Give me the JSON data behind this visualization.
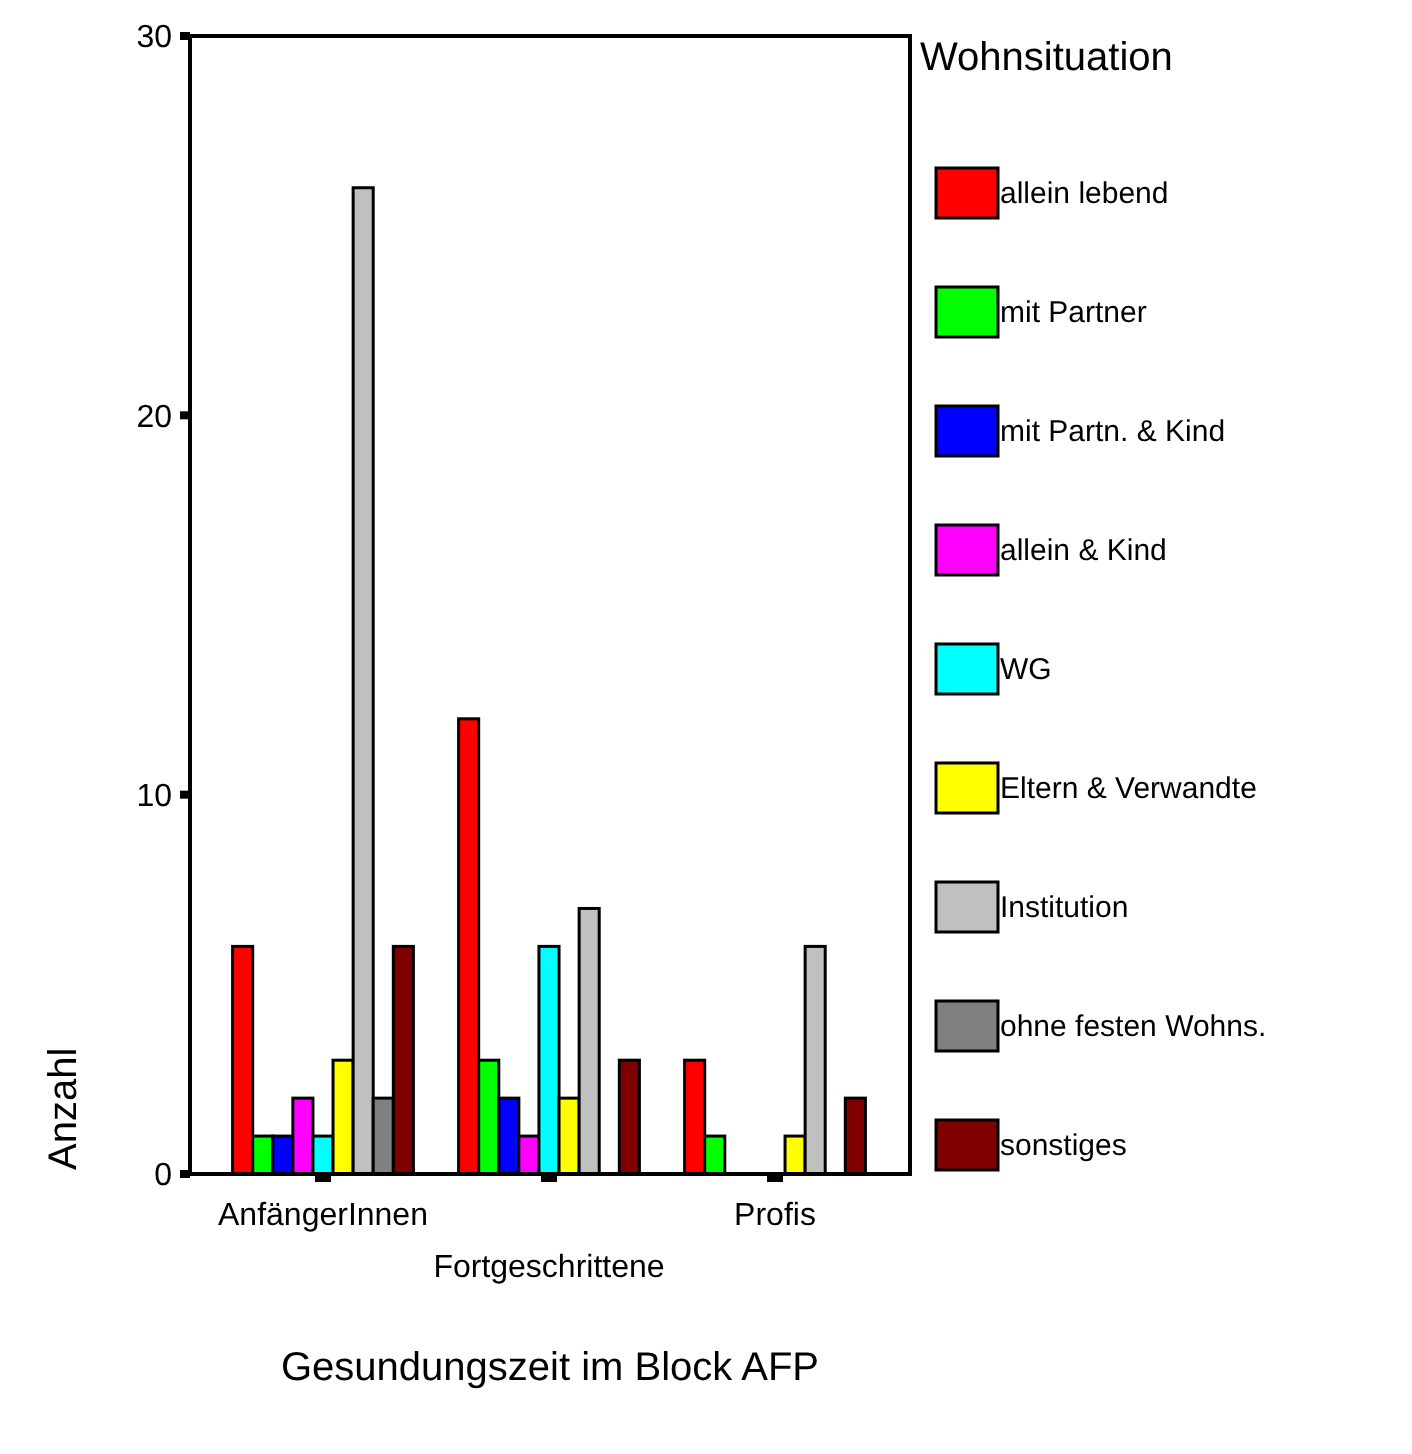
{
  "chart_data": {
    "type": "bar",
    "xlabel": "Gesundungszeit im Block AFP",
    "ylabel": "Anzahl",
    "legend_title": "Wohnsituation",
    "categories": [
      "AnfängerInnen",
      "Fortgeschrittene",
      "Profis"
    ],
    "series": [
      {
        "name": "allein lebend",
        "color": "#ff0000",
        "values": [
          6,
          12,
          3
        ]
      },
      {
        "name": "mit Partner",
        "color": "#00ff00",
        "values": [
          1,
          3,
          1
        ]
      },
      {
        "name": "mit Partn. & Kind",
        "color": "#0000ff",
        "values": [
          1,
          2,
          null
        ]
      },
      {
        "name": "allein & Kind",
        "color": "#ff00ff",
        "values": [
          2,
          1,
          null
        ]
      },
      {
        "name": "WG",
        "color": "#00ffff",
        "values": [
          1,
          6,
          null
        ]
      },
      {
        "name": "Eltern & Verwandte",
        "color": "#ffff00",
        "values": [
          3,
          2,
          1
        ]
      },
      {
        "name": "Institution",
        "color": "#c0c0c0",
        "values": [
          26,
          7,
          6
        ]
      },
      {
        "name": "ohne festen Wohns.",
        "color": "#808080",
        "values": [
          2,
          null,
          null
        ]
      },
      {
        "name": "sonstiges",
        "color": "#800000",
        "values": [
          6,
          3,
          2
        ]
      }
    ],
    "ylim": [
      0,
      30
    ],
    "yticks": [
      0,
      10,
      20,
      30
    ],
    "legend": "right",
    "grid": false
  }
}
